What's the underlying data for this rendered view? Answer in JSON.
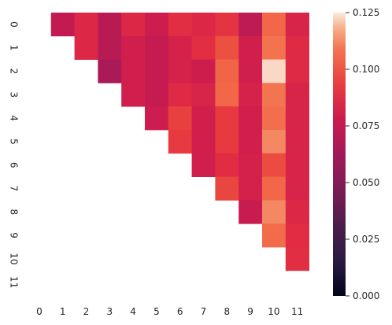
{
  "chart_data": {
    "type": "heatmap",
    "title": "",
    "xlabel": "",
    "ylabel": "",
    "x_categories": [
      "0",
      "1",
      "2",
      "3",
      "4",
      "5",
      "6",
      "7",
      "8",
      "9",
      "10",
      "11"
    ],
    "y_categories": [
      "0",
      "1",
      "2",
      "3",
      "4",
      "5",
      "6",
      "7",
      "8",
      "9",
      "10",
      "11"
    ],
    "mask": "lower-triangle-including-diagonal",
    "values": [
      [
        null,
        0.075,
        0.085,
        0.071,
        0.085,
        0.079,
        0.088,
        0.085,
        0.09,
        0.073,
        0.103,
        0.083
      ],
      [
        null,
        null,
        0.085,
        0.071,
        0.08,
        0.076,
        0.082,
        0.088,
        0.097,
        0.08,
        0.108,
        0.086
      ],
      [
        null,
        null,
        null,
        0.066,
        0.08,
        0.076,
        0.082,
        0.079,
        0.102,
        0.08,
        0.123,
        0.086
      ],
      [
        null,
        null,
        null,
        null,
        0.08,
        0.076,
        0.086,
        0.083,
        0.103,
        0.082,
        0.109,
        0.083
      ],
      [
        null,
        null,
        null,
        null,
        null,
        0.079,
        0.094,
        0.08,
        0.092,
        0.08,
        0.106,
        0.083
      ],
      [
        null,
        null,
        null,
        null,
        null,
        null,
        0.092,
        0.08,
        0.092,
        0.08,
        0.112,
        0.083
      ],
      [
        null,
        null,
        null,
        null,
        null,
        null,
        null,
        0.08,
        0.087,
        0.081,
        0.096,
        0.083
      ],
      [
        null,
        null,
        null,
        null,
        null,
        null,
        null,
        null,
        0.095,
        0.081,
        0.103,
        0.083
      ],
      [
        null,
        null,
        null,
        null,
        null,
        null,
        null,
        null,
        null,
        0.077,
        0.112,
        0.085
      ],
      [
        null,
        null,
        null,
        null,
        null,
        null,
        null,
        null,
        null,
        null,
        0.105,
        0.087
      ],
      [
        null,
        null,
        null,
        null,
        null,
        null,
        null,
        null,
        null,
        null,
        null,
        0.088
      ],
      [
        null,
        null,
        null,
        null,
        null,
        null,
        null,
        null,
        null,
        null,
        null,
        null
      ]
    ],
    "colorbar": {
      "min": 0.0,
      "max": 0.125,
      "ticks": [
        0.0,
        0.025,
        0.05,
        0.075,
        0.1,
        0.125
      ],
      "tick_labels": [
        "0.000",
        "0.025",
        "0.050",
        "0.075",
        "0.100",
        "0.125"
      ],
      "colormap": "rocket"
    },
    "grid": false,
    "legend": "colorbar-right"
  }
}
